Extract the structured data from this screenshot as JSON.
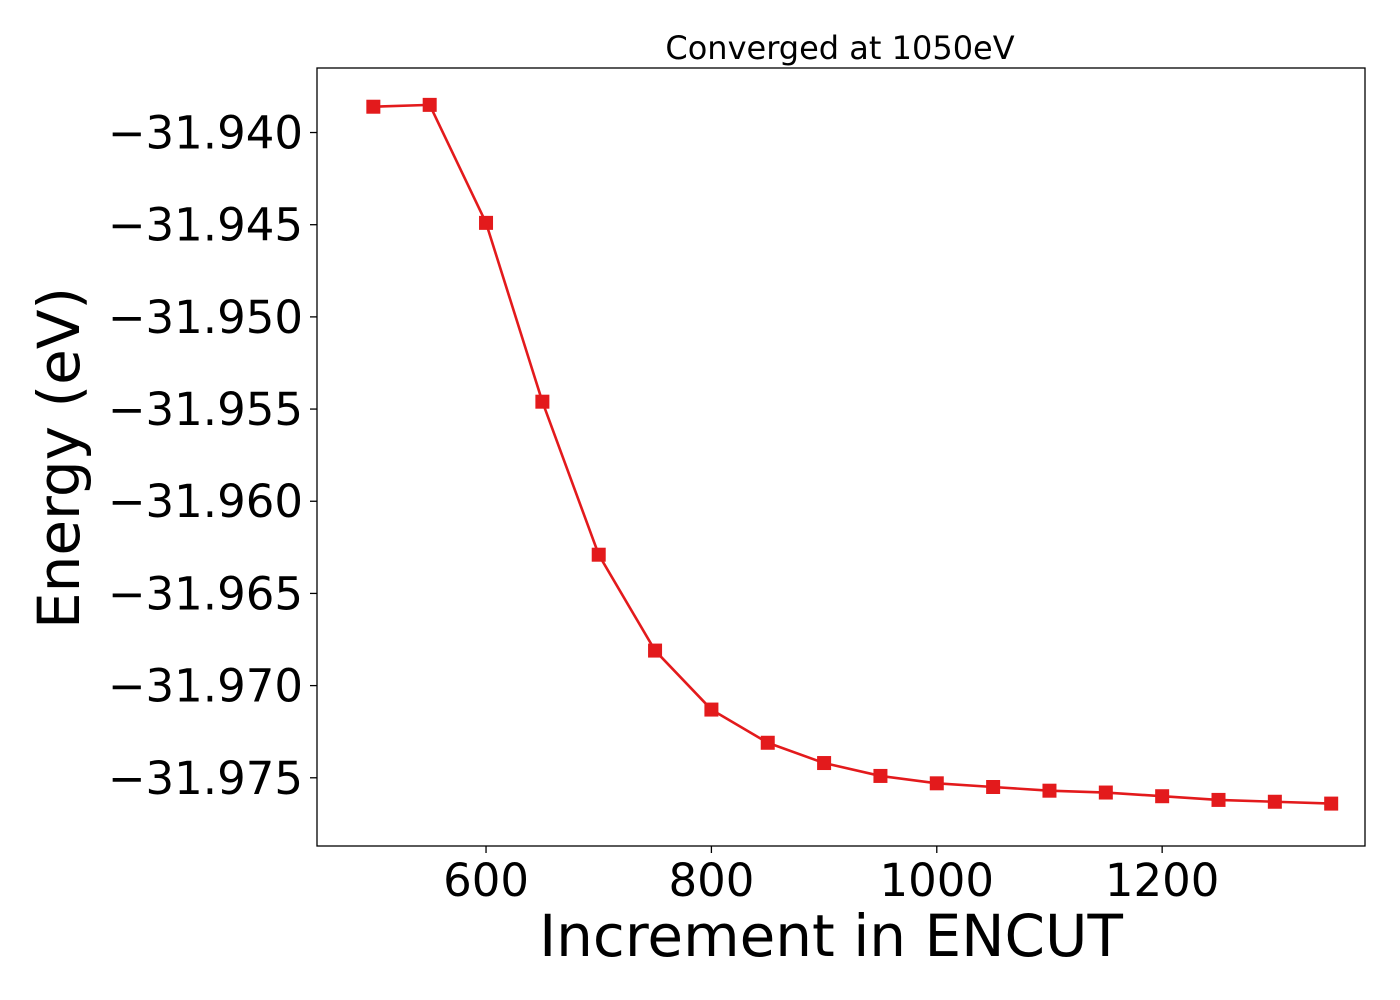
{
  "chart_data": {
    "type": "line",
    "title": "Converged at 1050eV",
    "xlabel": "Increment in ENCUT",
    "ylabel": "Energy (eV)",
    "xlim": [
      450,
      1380
    ],
    "ylim": [
      -31.9787,
      -31.9365
    ],
    "xticks": [
      600,
      800,
      1000,
      1200
    ],
    "xtick_labels": [
      "600",
      "800",
      "1000",
      "1200"
    ],
    "yticks": [
      -31.94,
      -31.945,
      -31.95,
      -31.955,
      -31.96,
      -31.965,
      -31.97,
      -31.975
    ],
    "ytick_labels": [
      "−31.940",
      "−31.945",
      "−31.950",
      "−31.955",
      "−31.960",
      "−31.965",
      "−31.970",
      "−31.975"
    ],
    "grid": false,
    "series": [
      {
        "color": "#e31a1c",
        "marker": "square",
        "x": [
          500,
          550,
          600,
          650,
          700,
          750,
          800,
          850,
          900,
          950,
          1000,
          1050,
          1100,
          1150,
          1200,
          1250,
          1300,
          1350
        ],
        "y": [
          -31.9386,
          -31.9385,
          -31.9449,
          -31.9546,
          -31.9629,
          -31.9681,
          -31.9713,
          -31.9731,
          -31.9742,
          -31.9749,
          -31.9753,
          -31.9755,
          -31.9757,
          -31.9758,
          -31.976,
          -31.9762,
          -31.9763,
          -31.9764
        ]
      }
    ]
  }
}
